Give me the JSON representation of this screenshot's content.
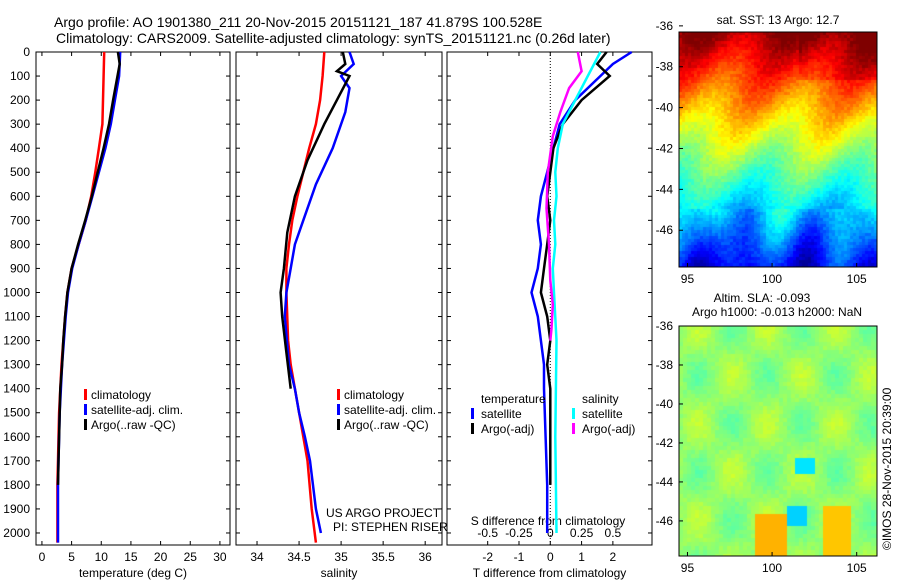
{
  "title_line1": "Argo profile: AO 1901380_211 20-Nov-2015 20151121_187 41.879S 100.528E",
  "title_line2": "Climatology: CARS2009. Satellite-adjusted climatology: synTS_20151121.nc (0.26d later)",
  "colors": {
    "climatology": "#ff0000",
    "satellite": "#0000ff",
    "argo": "#000000",
    "sal_satellite": "#00ffff",
    "sal_argo": "#ff00ff"
  },
  "credits": {
    "project": "US ARGO PROJECT",
    "pi": "PI: STEPHEN RISER",
    "imos": "©IMOS 28-Nov-2015 20:39:00"
  },
  "chart_data": [
    {
      "type": "line",
      "id": "temperature",
      "xlabel": "temperature (deg C)",
      "ylabel": "",
      "xlim": [
        -1,
        31.7
      ],
      "ylim": [
        0,
        2050
      ],
      "y_reversed": true,
      "xticks": [
        0,
        5,
        10,
        15,
        20,
        25,
        30
      ],
      "yticks": [
        0,
        100,
        200,
        300,
        400,
        500,
        600,
        700,
        800,
        900,
        1000,
        1100,
        1200,
        1300,
        1400,
        1500,
        1600,
        1700,
        1800,
        1900,
        2000
      ],
      "legend": [
        "climatology",
        "satellite-adj. clim.",
        "Argo(..raw -QC)"
      ],
      "series": [
        {
          "name": "climatology",
          "color_key": "climatology",
          "x": [
            10.5,
            10.4,
            10.3,
            10.2,
            9.6,
            9.0,
            8.3,
            7.4,
            6.2,
            5.0,
            4.3,
            3.9,
            3.6,
            3.3,
            3.1,
            2.9,
            2.8,
            2.7,
            2.6,
            2.6,
            2.6
          ],
          "depth": [
            0,
            100,
            200,
            300,
            400,
            500,
            600,
            700,
            800,
            900,
            1000,
            1100,
            1200,
            1300,
            1400,
            1500,
            1600,
            1700,
            1800,
            1900,
            2040
          ]
        },
        {
          "name": "satellite-adj. clim.",
          "color_key": "satellite",
          "x": [
            13.2,
            13.0,
            12.3,
            11.6,
            10.7,
            9.6,
            8.5,
            7.4,
            6.2,
            5.1,
            4.4,
            4.0,
            3.7,
            3.4,
            3.2,
            3.0,
            2.9,
            2.8,
            2.7,
            2.7,
            2.7
          ],
          "depth": [
            0,
            100,
            200,
            300,
            400,
            500,
            600,
            700,
            800,
            900,
            1000,
            1100,
            1200,
            1300,
            1400,
            1500,
            1600,
            1700,
            1800,
            1900,
            2040
          ]
        },
        {
          "name": "Argo(..raw -QC)",
          "color_key": "argo",
          "x": [
            12.8,
            13.1,
            12.0,
            11.3,
            10.4,
            9.4,
            8.4,
            7.3,
            6.1,
            5.0,
            4.3,
            3.9,
            3.6,
            3.4,
            3.1,
            3.0,
            2.9,
            2.8,
            2.7
          ],
          "depth": [
            0,
            50,
            200,
            300,
            400,
            500,
            600,
            700,
            800,
            900,
            1000,
            1100,
            1200,
            1300,
            1400,
            1500,
            1600,
            1700,
            1800
          ]
        }
      ]
    },
    {
      "type": "line",
      "id": "salinity",
      "xlabel": "salinity",
      "ylabel": "",
      "xlim": [
        33.75,
        36.2
      ],
      "ylim": [
        0,
        2050
      ],
      "y_reversed": true,
      "xticks": [
        34,
        34.5,
        35,
        35.5,
        36
      ],
      "legend": [
        "climatology",
        "satellite-adj. clim.",
        "Argo(..raw -QC)"
      ],
      "series": [
        {
          "name": "climatology",
          "color_key": "climatology",
          "x": [
            34.8,
            34.78,
            34.75,
            34.7,
            34.62,
            34.55,
            34.48,
            34.42,
            34.38,
            34.35,
            34.35,
            34.37,
            34.4,
            34.45,
            34.5,
            34.55,
            34.6,
            34.65,
            34.7
          ],
          "depth": [
            0,
            100,
            200,
            300,
            400,
            500,
            600,
            700,
            800,
            900,
            1000,
            1200,
            1300,
            1400,
            1500,
            1600,
            1700,
            1900,
            2040
          ]
        },
        {
          "name": "satellite-adj. clim.",
          "color_key": "satellite",
          "x": [
            35.1,
            35.15,
            35.0,
            35.1,
            35.05,
            34.9,
            34.7,
            34.55,
            34.45,
            34.4,
            34.35,
            34.33,
            34.38,
            34.45,
            34.5,
            34.57,
            34.63,
            34.7,
            34.76
          ],
          "depth": [
            0,
            50,
            100,
            150,
            250,
            400,
            550,
            700,
            800,
            900,
            1000,
            1100,
            1300,
            1400,
            1500,
            1600,
            1700,
            1900,
            2000
          ]
        },
        {
          "name": "Argo(..raw -QC)",
          "color_key": "argo",
          "x": [
            35.02,
            35.05,
            34.95,
            35.1,
            34.95,
            34.8,
            34.6,
            34.45,
            34.36,
            34.32,
            34.28,
            34.3,
            34.35,
            34.4
          ],
          "depth": [
            0,
            50,
            80,
            100,
            200,
            300,
            450,
            600,
            750,
            900,
            1000,
            1100,
            1250,
            1400
          ]
        }
      ]
    },
    {
      "type": "line",
      "id": "difference",
      "xlabel": "T difference from climatology",
      "xlabel2": "S difference from climatology",
      "xlim": [
        -3.3,
        3.25
      ],
      "ylim": [
        0,
        2050
      ],
      "y_reversed": true,
      "xticks": [
        -2,
        -1,
        0,
        1,
        2
      ],
      "xticks_S": [
        -0.5,
        -0.25,
        0,
        0.25,
        0.5
      ],
      "xticks_S_labels": [
        "-0.5",
        "-0.25",
        "0",
        "0.25",
        "0.5"
      ],
      "legend_headers": [
        "temperature",
        "salinity"
      ],
      "legend": [
        "satellite",
        "Argo(-adj)",
        "satellite",
        "Argo(-adj)"
      ],
      "series": [
        {
          "name": "T satellite",
          "color_key": "satellite",
          "scale": 1,
          "x": [
            2.6,
            2.0,
            1.6,
            0.8,
            0.3,
            0.1,
            -0.1,
            -0.3,
            -0.4,
            -0.3,
            -0.4,
            -0.6,
            -0.4,
            -0.2,
            -0.2,
            -0.15,
            -0.1,
            -0.1,
            -0.1
          ],
          "depth": [
            0,
            50,
            100,
            200,
            300,
            400,
            500,
            600,
            700,
            800,
            900,
            1000,
            1100,
            1300,
            1400,
            1600,
            1800,
            1900,
            2000
          ]
        },
        {
          "name": "T Argo(-adj)",
          "color_key": "argo",
          "scale": 1,
          "x": [
            1.8,
            1.5,
            1.9,
            1.0,
            0.4,
            0.1,
            0.0,
            -0.1,
            0.0,
            -0.1,
            -0.2,
            -0.3,
            -0.1,
            0.0,
            -0.1,
            0.0,
            0.0
          ],
          "depth": [
            0,
            50,
            100,
            200,
            300,
            400,
            500,
            600,
            700,
            800,
            900,
            1000,
            1100,
            1200,
            1300,
            1400,
            1800
          ]
        },
        {
          "name": "S satellite",
          "color_key": "sal_satellite",
          "scale": 4,
          "x": [
            0.4,
            0.3,
            0.2,
            0.1,
            0.06,
            0.04,
            0.05,
            0.03,
            0.04,
            0.02,
            0.03,
            0.05,
            0.04,
            0.05
          ],
          "depth": [
            0,
            100,
            200,
            300,
            400,
            500,
            600,
            700,
            800,
            900,
            1000,
            1200,
            1600,
            2000
          ]
        },
        {
          "name": "S Argo(-adj)",
          "color_key": "sal_argo",
          "scale": 4,
          "x": [
            0.22,
            0.25,
            0.15,
            0.08,
            0.02,
            -0.02,
            -0.03,
            -0.01,
            0.0,
            0.02,
            0.01,
            0.0
          ],
          "depth": [
            0,
            80,
            150,
            250,
            350,
            500,
            650,
            800,
            950,
            1050,
            1150,
            1200
          ]
        }
      ]
    },
    {
      "type": "heatmap",
      "id": "sst",
      "title": "sat. SST: 13 Argo: 12.7",
      "xlim": [
        94.5,
        106.2
      ],
      "ylim": [
        -36.3,
        -47.8
      ],
      "xticks": [
        95,
        100,
        105
      ],
      "yticks": [
        -36,
        -38,
        -40,
        -42,
        -44,
        -46
      ]
    },
    {
      "type": "heatmap",
      "id": "sla",
      "title": "Altim. SLA: -0.093",
      "title2": "Argo h1000: -0.013 h2000: NaN",
      "xlim": [
        94.5,
        106.2
      ],
      "ylim": [
        -36,
        -47.8
      ],
      "xticks": [
        95,
        100,
        105
      ],
      "yticks": [
        -36,
        -38,
        -40,
        -42,
        -44,
        -46
      ]
    }
  ]
}
